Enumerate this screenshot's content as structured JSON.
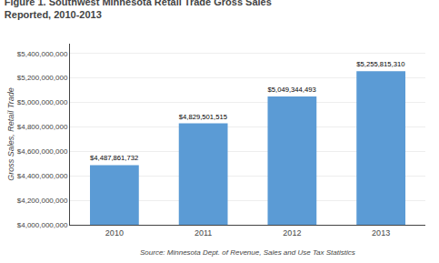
{
  "chart_data": {
    "type": "bar",
    "title": "Figure 1. Southwest Minnesota Retail Trade Gross Sales",
    "subtitle": "Reported, 2010-2013",
    "categories": [
      "2010",
      "2011",
      "2012",
      "2013"
    ],
    "values": [
      4487861732,
      4829501515,
      5049344493,
      5255815310
    ],
    "value_labels": [
      "$4,487,861,732",
      "$4,829,501,515",
      "$5,049,344,493",
      "$5,255,815,310"
    ],
    "data_labels": true,
    "color": "#5B9BD5",
    "y_label": "Gross Sales, Retail Trade",
    "ylim": [
      4000000000,
      5480000000
    ],
    "yticks": [
      {
        "value": 4000000000,
        "label": "$4,000,000,000"
      },
      {
        "value": 4200000000,
        "label": "$4,200,000,000"
      },
      {
        "value": 4400000000,
        "label": "$4,400,000,000"
      },
      {
        "value": 4600000000,
        "label": "$4,600,000,000"
      },
      {
        "value": 4800000000,
        "label": "$4,800,000,000"
      },
      {
        "value": 5000000000,
        "label": "$5,000,000,000"
      },
      {
        "value": 5200000000,
        "label": "$5,200,000,000"
      },
      {
        "value": 5400000000,
        "label": "$5,400,000,000"
      }
    ],
    "grid": true,
    "annotations": [
      "Source: Minnesota Dept. of Revenue, Sales and Use Tax Statistics"
    ]
  }
}
